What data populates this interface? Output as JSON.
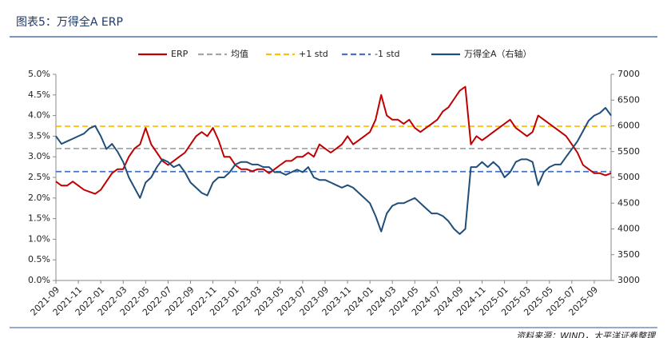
{
  "chart_data": {
    "type": "line",
    "title": "图表5：万得全A ERP",
    "source": "资料来源：WIND，太平洋证券整理",
    "categories": [
      "2021-09",
      null,
      null,
      null,
      "2021-11",
      null,
      null,
      null,
      "2022-01",
      null,
      null,
      null,
      "2022-03",
      null,
      null,
      null,
      "2022-05",
      null,
      null,
      null,
      "2022-07",
      null,
      null,
      null,
      "2022-09",
      null,
      null,
      null,
      "2022-11",
      null,
      null,
      null,
      "2023-01",
      null,
      null,
      null,
      "2023-03",
      null,
      null,
      null,
      "2023-05",
      null,
      null,
      null,
      "2023-07",
      null,
      null,
      null,
      "2023-09",
      null,
      null,
      null,
      "2023-11",
      null,
      null,
      null,
      "2024-01",
      null,
      null,
      null,
      "2024-03",
      null,
      null,
      null,
      "2024-05",
      null,
      null,
      null,
      "2024-07",
      null,
      null,
      null,
      "2024-09",
      null,
      null,
      null,
      "2024-11",
      null,
      null,
      null,
      "2025-01",
      null,
      null,
      null,
      "2025-03",
      null,
      null,
      null,
      "2025-05",
      null,
      null,
      null,
      "2025-07",
      null,
      null,
      null,
      "2025-09",
      null,
      null,
      null
    ],
    "series": [
      {
        "name": "ERP",
        "color": "#c00000",
        "values": [
          2.4,
          2.3,
          2.3,
          2.4,
          2.3,
          2.2,
          2.15,
          2.1,
          2.2,
          2.4,
          2.6,
          2.7,
          2.7,
          3.0,
          3.2,
          3.3,
          3.7,
          3.3,
          3.1,
          2.9,
          2.8,
          2.9,
          3.0,
          3.1,
          3.3,
          3.5,
          3.6,
          3.5,
          3.7,
          3.4,
          3.0,
          3.0,
          2.8,
          2.7,
          2.7,
          2.65,
          2.7,
          2.7,
          2.6,
          2.7,
          2.8,
          2.9,
          2.9,
          3.0,
          3.0,
          3.1,
          3.0,
          3.3,
          3.2,
          3.1,
          3.2,
          3.3,
          3.5,
          3.3,
          3.4,
          3.5,
          3.6,
          3.9,
          4.5,
          4.0,
          3.9,
          3.9,
          3.8,
          3.9,
          3.7,
          3.6,
          3.7,
          3.8,
          3.9,
          4.1,
          4.2,
          4.4,
          4.6,
          4.7,
          3.3,
          3.5,
          3.4,
          3.5,
          3.6,
          3.7,
          3.8,
          3.9,
          3.7,
          3.6,
          3.5,
          3.6,
          4.0,
          3.9,
          3.8,
          3.7,
          3.6,
          3.5,
          3.3,
          3.1,
          2.8,
          2.7,
          2.6,
          2.6,
          2.55,
          2.6
        ]
      },
      {
        "name": "万得全A（右轴）",
        "color": "#1f4e79",
        "axis": "y2",
        "values": [
          5800,
          5650,
          5700,
          5750,
          5800,
          5850,
          5950,
          6000,
          5800,
          5550,
          5650,
          5500,
          5300,
          5000,
          4800,
          4600,
          4900,
          5000,
          5200,
          5350,
          5300,
          5200,
          5250,
          5100,
          4900,
          4800,
          4700,
          4650,
          4900,
          5000,
          5000,
          5100,
          5250,
          5300,
          5300,
          5250,
          5250,
          5200,
          5200,
          5100,
          5100,
          5050,
          5100,
          5150,
          5100,
          5200,
          5000,
          4950,
          4950,
          4900,
          4850,
          4800,
          4850,
          4800,
          4700,
          4600,
          4500,
          4250,
          3950,
          4300,
          4450,
          4500,
          4500,
          4550,
          4600,
          4500,
          4400,
          4300,
          4300,
          4250,
          4150,
          4000,
          3900,
          4000,
          5200,
          5200,
          5300,
          5200,
          5300,
          5200,
          5000,
          5100,
          5300,
          5350,
          5350,
          5300,
          4850,
          5100,
          5200,
          5250,
          5250,
          5400,
          5550,
          5700,
          5900,
          6100,
          6200,
          6250,
          6350,
          6200
        ]
      }
    ],
    "reference_lines": [
      {
        "name": "均值",
        "value": 3.2,
        "color": "#a6a6a6"
      },
      {
        "name": "+1 std",
        "value": 3.74,
        "color": "#ffc000"
      },
      {
        "name": "-1 std",
        "value": 2.64,
        "color": "#4472c4"
      }
    ],
    "ylim": [
      0,
      5
    ],
    "yticks": [
      {
        "value": 0,
        "label": "0.0%"
      },
      {
        "value": 0.5,
        "label": "0.5%"
      },
      {
        "value": 1,
        "label": "1.0%"
      },
      {
        "value": 1.5,
        "label": "1.5%"
      },
      {
        "value": 2,
        "label": "2.0%"
      },
      {
        "value": 2.5,
        "label": "2.5%"
      },
      {
        "value": 3,
        "label": "3.0%"
      },
      {
        "value": 3.5,
        "label": "3.5%"
      },
      {
        "value": 4,
        "label": "4.0%"
      },
      {
        "value": 4.5,
        "label": "4.5%"
      },
      {
        "value": 5,
        "label": "5.0%"
      }
    ],
    "y2lim": [
      3000,
      7000
    ],
    "y2ticks": [
      3000,
      3500,
      4000,
      4500,
      5000,
      5500,
      6000,
      6500,
      7000
    ]
  }
}
